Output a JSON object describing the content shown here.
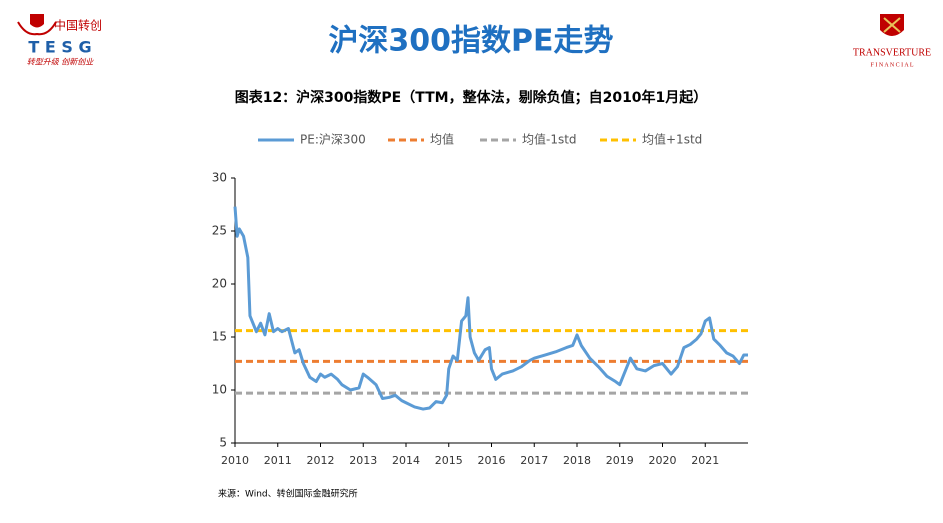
{
  "header": {
    "logo_cn": "中国转创",
    "logo_en": "T E S G",
    "logo_slogan": "转型升级 创新创业",
    "title": "沪深300指数PE走势",
    "right_logo_1": "TRANSVERTURE",
    "right_logo_2": "F I N A N C I A L"
  },
  "chart_data": {
    "type": "line",
    "title": "图表12：沪深300指数PE（TTM，整体法，剔除负值；自2010年1月起）",
    "xlim": [
      2010,
      2022
    ],
    "xticks": [
      2010,
      2011,
      2012,
      2013,
      2014,
      2015,
      2016,
      2017,
      2018,
      2019,
      2020,
      2021
    ],
    "ylim": [
      5,
      30
    ],
    "yticks": [
      5,
      10,
      15,
      20,
      25,
      30
    ],
    "series": [
      {
        "name": "PE:沪深300",
        "color": "#5b9bd5",
        "style": "solid",
        "x": [
          2010.0,
          2010.05,
          2010.1,
          2010.2,
          2010.3,
          2010.35,
          2010.5,
          2010.6,
          2010.7,
          2010.8,
          2010.9,
          2011.0,
          2011.1,
          2011.25,
          2011.4,
          2011.5,
          2011.6,
          2011.75,
          2011.9,
          2012.0,
          2012.1,
          2012.25,
          2012.4,
          2012.5,
          2012.7,
          2012.9,
          2013.0,
          2013.1,
          2013.3,
          2013.45,
          2013.6,
          2013.75,
          2013.9,
          2014.0,
          2014.2,
          2014.4,
          2014.55,
          2014.7,
          2014.85,
          2014.95,
          2015.0,
          2015.1,
          2015.2,
          2015.3,
          2015.4,
          2015.45,
          2015.5,
          2015.6,
          2015.7,
          2015.85,
          2015.95,
          2016.0,
          2016.1,
          2016.25,
          2016.5,
          2016.7,
          2016.9,
          2017.0,
          2017.25,
          2017.5,
          2017.75,
          2017.9,
          2018.0,
          2018.1,
          2018.3,
          2018.5,
          2018.7,
          2018.9,
          2019.0,
          2019.1,
          2019.25,
          2019.4,
          2019.6,
          2019.8,
          2020.0,
          2020.2,
          2020.35,
          2020.5,
          2020.65,
          2020.8,
          2020.9,
          2021.0,
          2021.1,
          2021.2,
          2021.35,
          2021.5,
          2021.65,
          2021.8,
          2021.9,
          2022.0
        ],
        "values": [
          27.3,
          24.5,
          25.2,
          24.5,
          22.5,
          17,
          15.5,
          16.3,
          15.2,
          17.2,
          15.5,
          15.8,
          15.5,
          15.8,
          13.5,
          13.8,
          12.5,
          11.2,
          10.8,
          11.5,
          11.2,
          11.5,
          11,
          10.5,
          10,
          10.2,
          11.5,
          11.2,
          10.5,
          9.2,
          9.3,
          9.5,
          9.0,
          8.8,
          8.4,
          8.2,
          8.3,
          8.9,
          8.8,
          9.5,
          12.0,
          13.2,
          12.8,
          16.5,
          17,
          18.7,
          15,
          13.5,
          12.8,
          13.8,
          14,
          12,
          11,
          11.5,
          11.8,
          12.2,
          12.8,
          13,
          13.3,
          13.6,
          14,
          14.2,
          15.2,
          14.2,
          13,
          12.2,
          11.3,
          10.8,
          10.5,
          11.5,
          13,
          12,
          11.8,
          12.3,
          12.5,
          11.5,
          12.2,
          14,
          14.3,
          14.8,
          15.3,
          16.5,
          16.8,
          14.8,
          14.2,
          13.5,
          13.2,
          12.5,
          13.3,
          13.3
        ]
      },
      {
        "name": "均值",
        "color": "#ed7d31",
        "style": "dashed",
        "x": [
          2010,
          2022
        ],
        "values": [
          12.7,
          12.7
        ]
      },
      {
        "name": "均值-1std",
        "color": "#a5a5a5",
        "style": "dashed",
        "x": [
          2010,
          2022
        ],
        "values": [
          9.7,
          9.7
        ]
      },
      {
        "name": "均值+1std",
        "color": "#ffc000",
        "style": "dashed",
        "x": [
          2010,
          2022
        ],
        "values": [
          15.6,
          15.6
        ]
      }
    ]
  },
  "source": "来源：Wind、转创国际金融研究所"
}
